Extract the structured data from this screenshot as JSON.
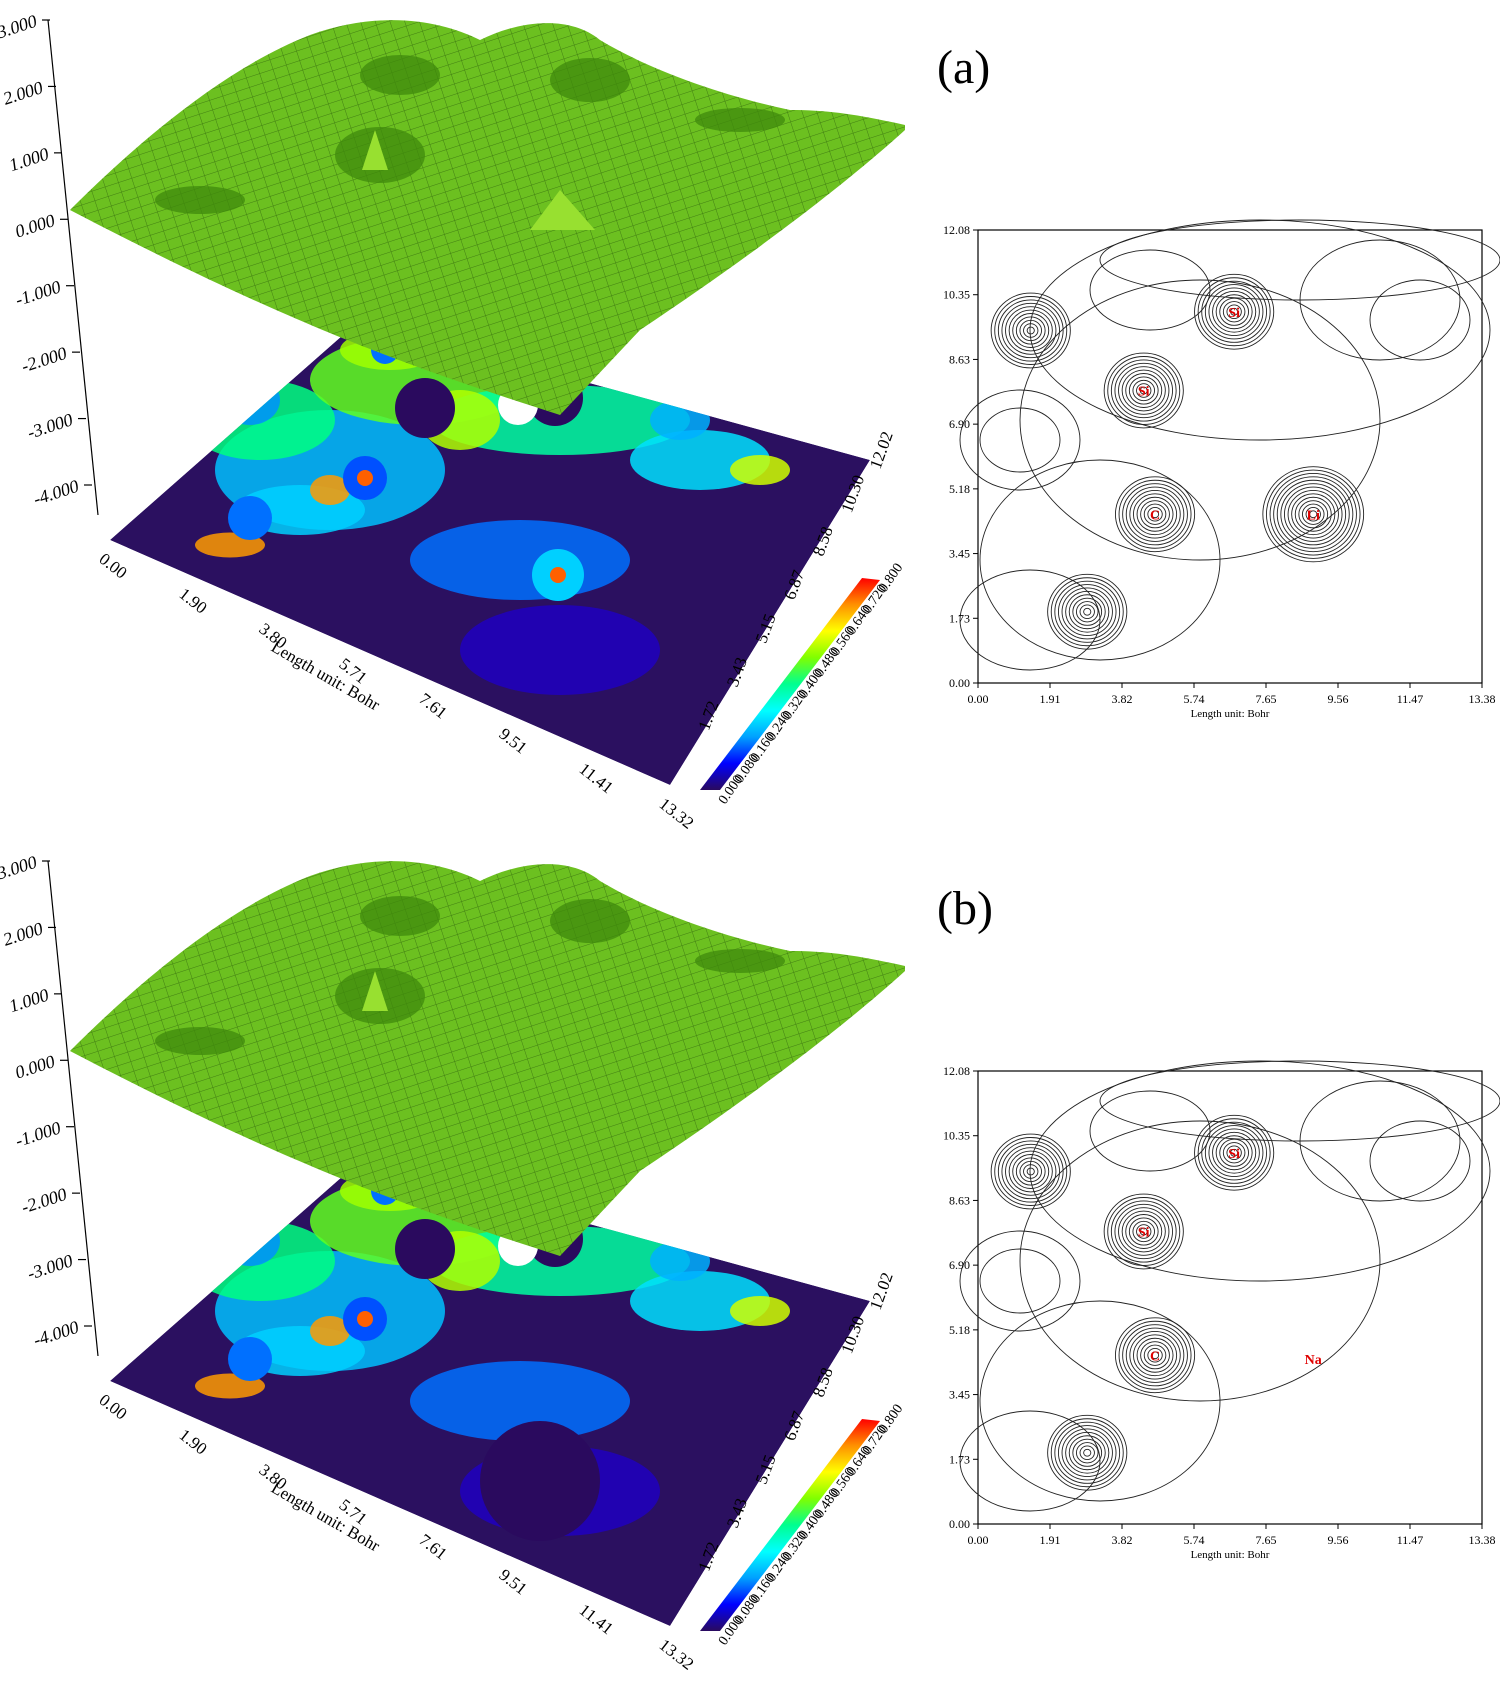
{
  "colors": {
    "surface": "#6cc020",
    "surface_mesh": "#1f4a08",
    "atom_label": "#e00000",
    "contour_line": "#222222"
  },
  "colorbar_stops": [
    "#2a0a5e",
    "#0000ff",
    "#00a0ff",
    "#00ffff",
    "#00ff90",
    "#80ff00",
    "#ffff00",
    "#ff9000",
    "#ff0000"
  ],
  "chart_data": [
    {
      "panel": "(a)",
      "type": "surface-3d",
      "z_ticks": [
        "3.000",
        "2.000",
        "1.000",
        "0.000",
        "-1.000",
        "-2.000",
        "-3.000",
        "-4.000"
      ],
      "x_ticks": [
        "0.00",
        "1.90",
        "3.80",
        "5.71",
        "7.61",
        "9.51",
        "11.41",
        "13.32"
      ],
      "y_ticks": [
        "1.72",
        "3.43",
        "5.15",
        "6.87",
        "8.58",
        "10.30",
        "12.02"
      ],
      "xlabel": "Length unit: Bohr",
      "colorbar_ticks": [
        "0.000",
        "0.080",
        "0.160",
        "0.240",
        "0.320",
        "0.400",
        "0.480",
        "0.560",
        "0.640",
        "0.720",
        "0.800"
      ],
      "xlim": [
        0,
        13.32
      ],
      "ylim": [
        0,
        12.02
      ],
      "zlim": [
        -4,
        3
      ],
      "colorbar_range": [
        0,
        0.8
      ]
    },
    {
      "panel": "(a)",
      "type": "contour",
      "x_ticks": [
        "0.00",
        "1.91",
        "3.82",
        "5.74",
        "7.65",
        "9.56",
        "11.47",
        "13.38"
      ],
      "y_ticks": [
        "0.00",
        "1.73",
        "3.45",
        "5.18",
        "6.90",
        "8.63",
        "10.35",
        "12.08"
      ],
      "xlabel": "Length unit: Bohr",
      "xlim": [
        0,
        13.38
      ],
      "ylim": [
        0,
        12.08
      ],
      "atoms": [
        {
          "label": "Si",
          "x": 6.8,
          "y": 9.9
        },
        {
          "label": "Si",
          "x": 4.4,
          "y": 7.8
        },
        {
          "label": "C",
          "x": 4.7,
          "y": 4.5
        },
        {
          "label": "Li",
          "x": 8.9,
          "y": 4.5
        }
      ]
    },
    {
      "panel": "(b)",
      "type": "surface-3d",
      "z_ticks": [
        "3.000",
        "2.000",
        "1.000",
        "0.000",
        "-1.000",
        "-2.000",
        "-3.000",
        "-4.000"
      ],
      "x_ticks": [
        "0.00",
        "1.90",
        "3.80",
        "5.71",
        "7.61",
        "9.51",
        "11.41",
        "13.32"
      ],
      "y_ticks": [
        "1.72",
        "3.43",
        "5.15",
        "6.87",
        "8.58",
        "10.30",
        "12.02"
      ],
      "xlabel": "Length unit: Bohr",
      "colorbar_ticks": [
        "0.000",
        "0.080",
        "0.160",
        "0.240",
        "0.320",
        "0.400",
        "0.480",
        "0.560",
        "0.640",
        "0.720",
        "0.800"
      ],
      "xlim": [
        0,
        13.32
      ],
      "ylim": [
        0,
        12.02
      ],
      "zlim": [
        -4,
        3
      ],
      "colorbar_range": [
        0,
        0.8
      ]
    },
    {
      "panel": "(b)",
      "type": "contour",
      "x_ticks": [
        "0.00",
        "1.91",
        "3.82",
        "5.74",
        "7.65",
        "9.56",
        "11.47",
        "13.38"
      ],
      "y_ticks": [
        "0.00",
        "1.73",
        "3.45",
        "5.18",
        "6.90",
        "8.63",
        "10.35",
        "12.08"
      ],
      "xlabel": "Length unit: Bohr",
      "xlim": [
        0,
        13.38
      ],
      "ylim": [
        0,
        12.08
      ],
      "atoms": [
        {
          "label": "Si",
          "x": 6.8,
          "y": 9.9
        },
        {
          "label": "Si",
          "x": 4.4,
          "y": 7.8
        },
        {
          "label": "C",
          "x": 4.7,
          "y": 4.5
        },
        {
          "label": "Na",
          "x": 8.9,
          "y": 4.4
        }
      ]
    }
  ],
  "panels": [
    {
      "label": "(a)"
    },
    {
      "label": "(b)"
    }
  ]
}
